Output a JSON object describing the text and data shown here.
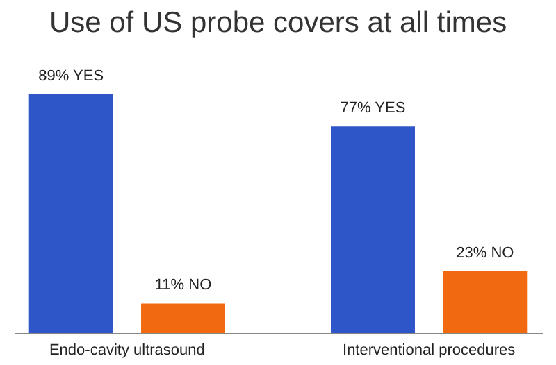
{
  "chart_data": {
    "type": "bar",
    "title": "Use of US probe covers at all times",
    "categories": [
      "Endo-cavity ultrasound",
      "Interventional procedures"
    ],
    "series": [
      {
        "color": "#2f56c8",
        "values": [
          89,
          77
        ],
        "value_labels": [
          "89% YES",
          "77% YES"
        ]
      },
      {
        "color": "#f26a10",
        "values": [
          11,
          23
        ],
        "value_labels": [
          "11% NO",
          "23% NO"
        ]
      }
    ]
  }
}
